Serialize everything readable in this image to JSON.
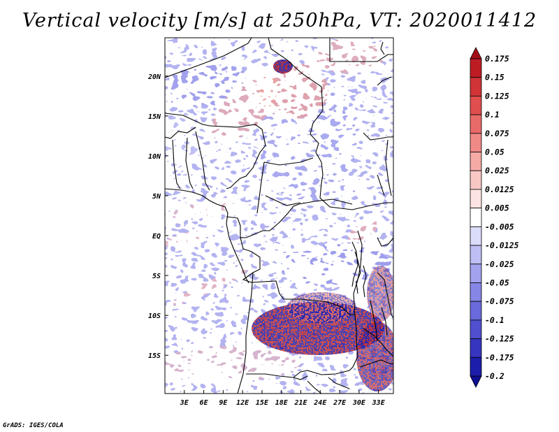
{
  "title": "Vertical velocity [m/s] at 250hPa, VT: 2020011412",
  "credit": "GrADS: IGES/COLA",
  "map": {
    "lat_range": [
      -19.8,
      24.8
    ],
    "lon_range": [
      0,
      35.3
    ],
    "lat_ticks": [
      "20N",
      "15N",
      "10N",
      "5N",
      "EQ",
      "5S",
      "10S",
      "15S"
    ],
    "lon_ticks": [
      "3E",
      "6E",
      "9E",
      "12E",
      "15E",
      "18E",
      "21E",
      "24E",
      "27E",
      "30E",
      "33E"
    ]
  },
  "colorbar": {
    "labels": [
      "0.175",
      "0.15",
      "0.125",
      "0.1",
      "0.075",
      "0.05",
      "0.025",
      "0.0125",
      "0.005",
      "-0.005",
      "-0.0125",
      "-0.025",
      "-0.05",
      "-0.075",
      "-0.1",
      "-0.125",
      "-0.175",
      "-0.2"
    ],
    "colors": [
      "#a30f17",
      "#bd1c24",
      "#d03436",
      "#e04e4e",
      "#e96b69",
      "#f08a87",
      "#f5aaa6",
      "#f9c8c5",
      "#fde4e2",
      "#ffffff",
      "#dcdcfb",
      "#bfbff5",
      "#a2a2ee",
      "#8686e6",
      "#6a6adc",
      "#4f4fd0",
      "#3535c0",
      "#1d1dac",
      "#0e0e92"
    ]
  }
}
